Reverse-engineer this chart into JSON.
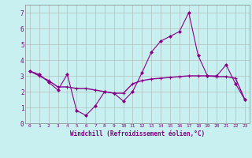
{
  "x": [
    0,
    1,
    2,
    3,
    4,
    5,
    6,
    7,
    8,
    9,
    10,
    11,
    12,
    13,
    14,
    15,
    16,
    17,
    18,
    19,
    20,
    21,
    22,
    23
  ],
  "line1_y": [
    3.3,
    3.1,
    2.6,
    2.1,
    3.1,
    0.8,
    0.5,
    1.1,
    2.0,
    1.9,
    1.4,
    2.0,
    3.2,
    4.5,
    5.2,
    5.5,
    5.8,
    7.0,
    4.3,
    3.0,
    3.0,
    3.7,
    2.5,
    1.5
  ],
  "line2_y": [
    3.3,
    3.0,
    2.7,
    2.3,
    2.3,
    2.2,
    2.2,
    2.1,
    2.0,
    1.9,
    1.9,
    2.5,
    2.7,
    2.8,
    2.85,
    2.9,
    2.95,
    3.0,
    3.0,
    3.0,
    2.95,
    2.95,
    2.85,
    1.5
  ],
  "line_color": "#880088",
  "bg_color": "#c8f0f0",
  "grid_color": "#b0b0b0",
  "xlabel": "Windchill (Refroidissement éolien,°C)",
  "xlim": [
    -0.5,
    23.5
  ],
  "ylim": [
    0,
    7.5
  ],
  "yticks": [
    0,
    1,
    2,
    3,
    4,
    5,
    6,
    7
  ],
  "xticks": [
    0,
    1,
    2,
    3,
    4,
    5,
    6,
    7,
    8,
    9,
    10,
    11,
    12,
    13,
    14,
    15,
    16,
    17,
    18,
    19,
    20,
    21,
    22,
    23
  ]
}
